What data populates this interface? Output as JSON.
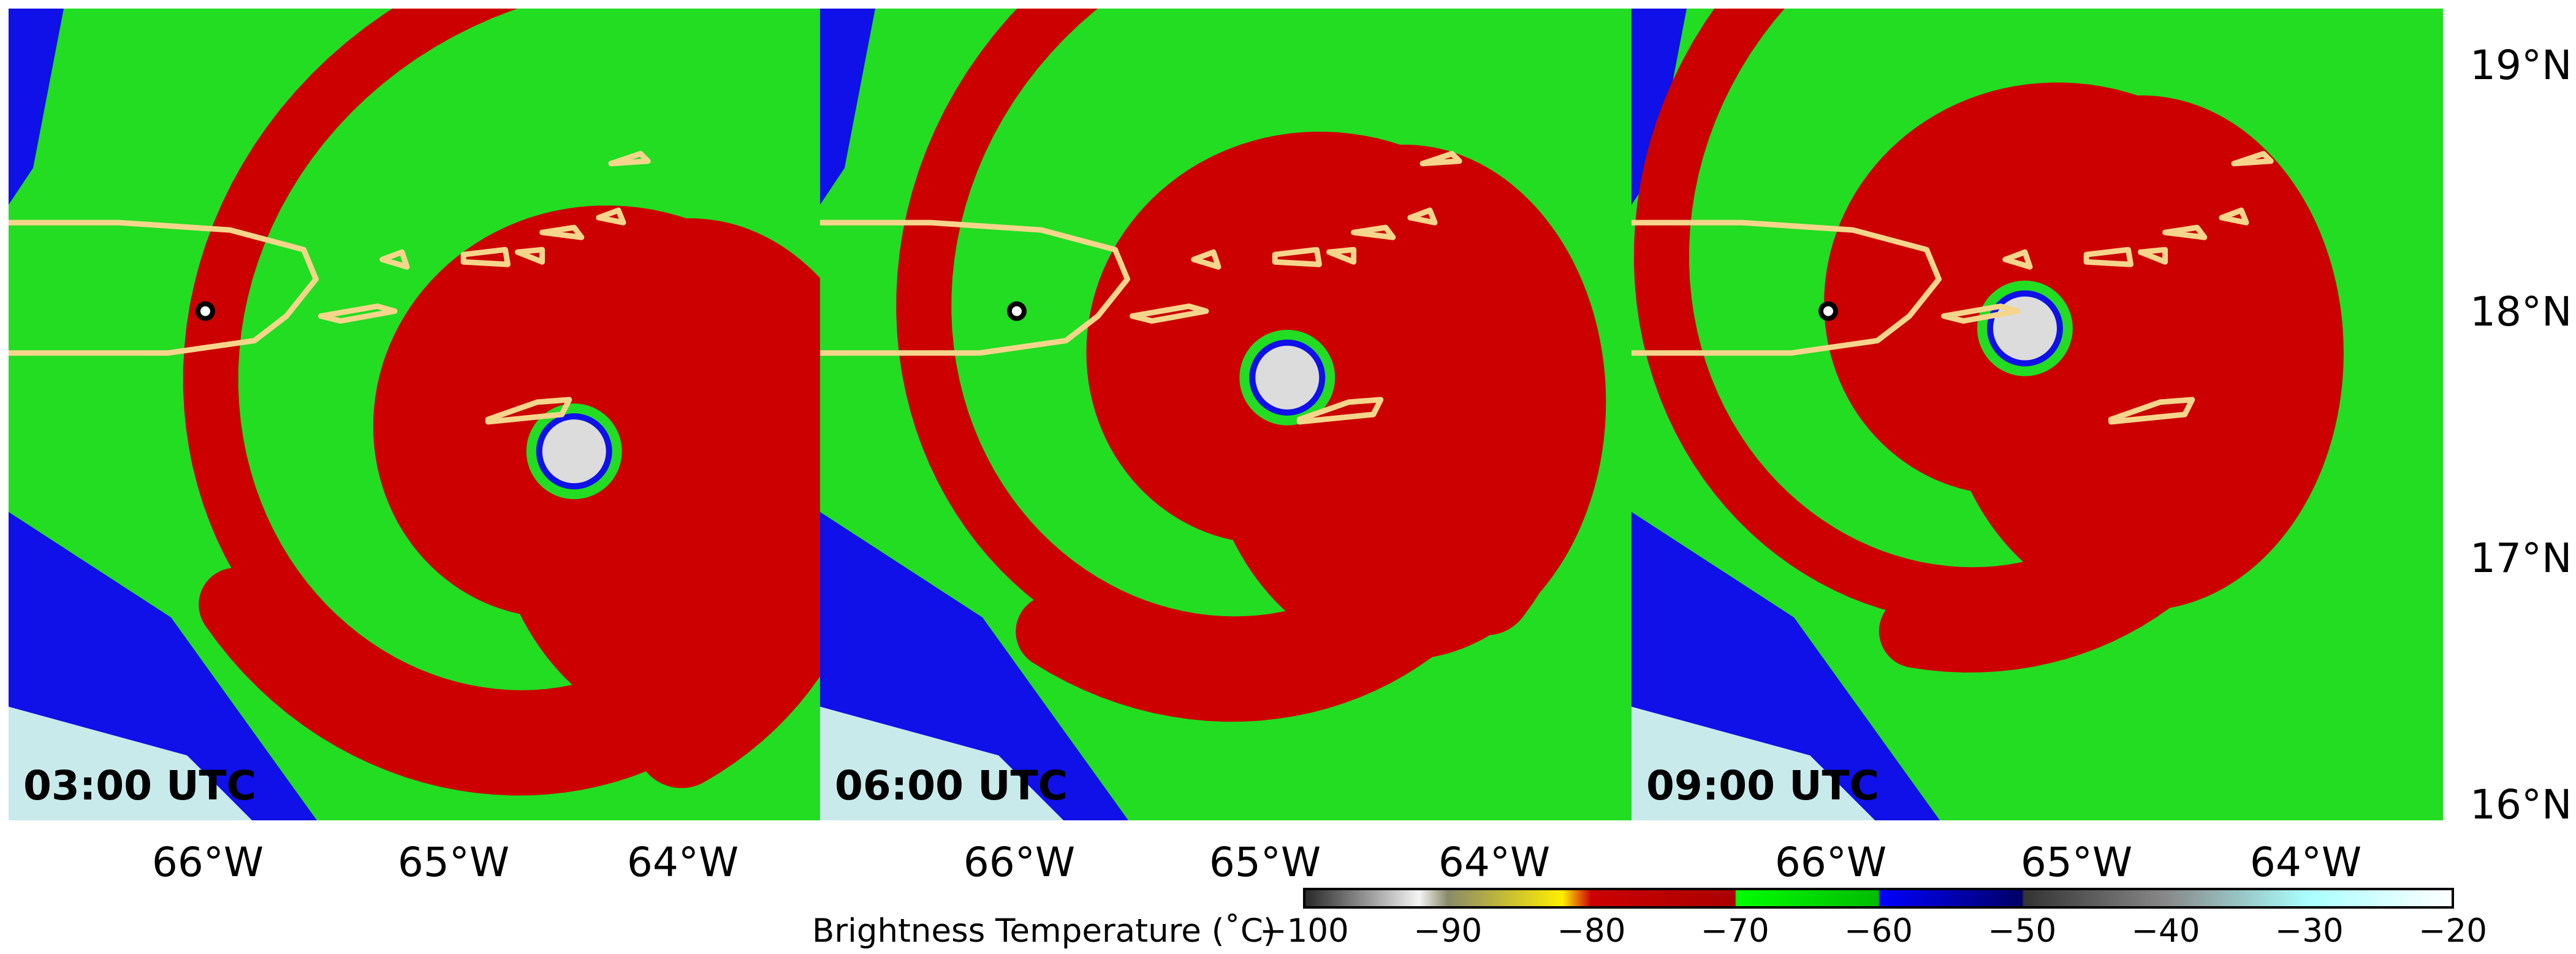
{
  "panels": [
    {
      "time": "03:00 UTC",
      "eye": {
        "lon": -64.55,
        "lat": 17.55
      }
    },
    {
      "time": "06:00 UTC",
      "eye": {
        "lon": -64.95,
        "lat": 17.85
      }
    },
    {
      "time": "09:00 UTC",
      "eye": {
        "lon": -65.25,
        "lat": 18.05
      }
    }
  ],
  "map_extent": {
    "lon": [
      -66.85,
      -63.55
    ],
    "lat": [
      16.05,
      19.35
    ]
  },
  "lat_ticks": [
    {
      "value": 19,
      "label": "19°N"
    },
    {
      "value": 18,
      "label": "18°N"
    },
    {
      "value": 17,
      "label": "17°N"
    },
    {
      "value": 16,
      "label": "16°N"
    }
  ],
  "lon_ticks": [
    {
      "value": -66,
      "label": "66°W"
    },
    {
      "value": -65,
      "label": "65°W"
    },
    {
      "value": -64,
      "label": "64°W"
    }
  ],
  "marker": {
    "lon": -66.05,
    "lat": 18.12
  },
  "colorbar": {
    "title": "Brightness Temperature (˚C)",
    "range": [
      -100,
      -20
    ],
    "ticks": [
      {
        "value": -100,
        "label": "−100"
      },
      {
        "value": -90,
        "label": "−90"
      },
      {
        "value": -80,
        "label": "−80"
      },
      {
        "value": -70,
        "label": "−70"
      },
      {
        "value": -60,
        "label": "−60"
      },
      {
        "value": -50,
        "label": "−50"
      },
      {
        "value": -40,
        "label": "−40"
      },
      {
        "value": -30,
        "label": "−30"
      },
      {
        "value": -20,
        "label": "−20"
      }
    ],
    "stops": [
      {
        "value": -100,
        "color": "#262626"
      },
      {
        "value": -92,
        "color": "#f4f4f4"
      },
      {
        "value": -90,
        "color": "#8a8a6a"
      },
      {
        "value": -82,
        "color": "#ffee00"
      },
      {
        "value": -80,
        "color": "#cc0000"
      },
      {
        "value": -70,
        "color": "#aa0000"
      },
      {
        "value": -69.9,
        "color": "#00ff00"
      },
      {
        "value": -60,
        "color": "#00bb00"
      },
      {
        "value": -59.9,
        "color": "#0000ff"
      },
      {
        "value": -50,
        "color": "#000066"
      },
      {
        "value": -49.9,
        "color": "#333333"
      },
      {
        "value": -40,
        "color": "#888888"
      },
      {
        "value": -30,
        "color": "#aaffff"
      },
      {
        "value": -20,
        "color": "#ffffff"
      }
    ]
  },
  "colors": {
    "eye": "#dcdcdc",
    "cold_red": "#cc0000",
    "green": "#22dd22",
    "blue": "#1010e8",
    "coast": "#f5d58c",
    "background": "#ffffff"
  }
}
